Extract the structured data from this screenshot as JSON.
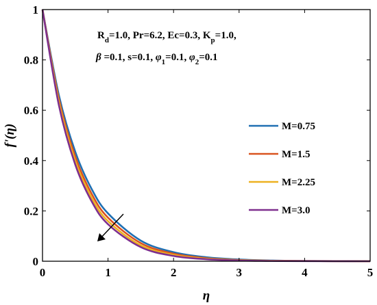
{
  "chart_data": {
    "type": "line",
    "xlabel": "η",
    "ylabel": "f'(η)",
    "xlim": [
      0,
      5
    ],
    "ylim": [
      0,
      1
    ],
    "x_ticks": [
      "0",
      "1",
      "2",
      "3",
      "4",
      "5"
    ],
    "y_ticks": [
      "0",
      "0.2",
      "0.4",
      "0.6",
      "0.8",
      "1"
    ],
    "grid": false,
    "legend_position": "right",
    "annotation": {
      "line1": "R_d=1.0, Pr=6.2, Ec=0.3, K_p=1.0,",
      "line2": "β =0.1, s=0.1, φ_1=0.1, φ_2=0.1"
    },
    "arrow_direction": "increasing M",
    "series": [
      {
        "name": "M=0.75",
        "color": "#1f6fb2",
        "x": [
          0,
          0.25,
          0.5,
          0.75,
          1,
          1.5,
          2,
          2.5,
          3,
          3.5,
          4,
          5
        ],
        "y": [
          1,
          0.66,
          0.435,
          0.287,
          0.19,
          0.082,
          0.036,
          0.016,
          0.007,
          0.003,
          0.001,
          0
        ]
      },
      {
        "name": "M=1.5",
        "color": "#d9531e",
        "x": [
          0,
          0.25,
          0.5,
          0.75,
          1,
          1.5,
          2,
          2.5,
          3,
          3.5,
          4,
          5
        ],
        "y": [
          1,
          0.645,
          0.416,
          0.268,
          0.173,
          0.072,
          0.03,
          0.012,
          0.005,
          0.002,
          0.001,
          0
        ]
      },
      {
        "name": "M=2.25",
        "color": "#edb120",
        "x": [
          0,
          0.25,
          0.5,
          0.75,
          1,
          1.5,
          2,
          2.5,
          3,
          3.5,
          4,
          5
        ],
        "y": [
          1,
          0.632,
          0.399,
          0.252,
          0.159,
          0.063,
          0.025,
          0.01,
          0.004,
          0.002,
          0.001,
          0
        ]
      },
      {
        "name": "M=3.0",
        "color": "#7e2f8e",
        "x": [
          0,
          0.25,
          0.5,
          0.75,
          1,
          1.5,
          2,
          2.5,
          3,
          3.5,
          4,
          5
        ],
        "y": [
          1,
          0.62,
          0.384,
          0.238,
          0.147,
          0.056,
          0.021,
          0.008,
          0.003,
          0.001,
          0.0005,
          0
        ]
      }
    ]
  }
}
